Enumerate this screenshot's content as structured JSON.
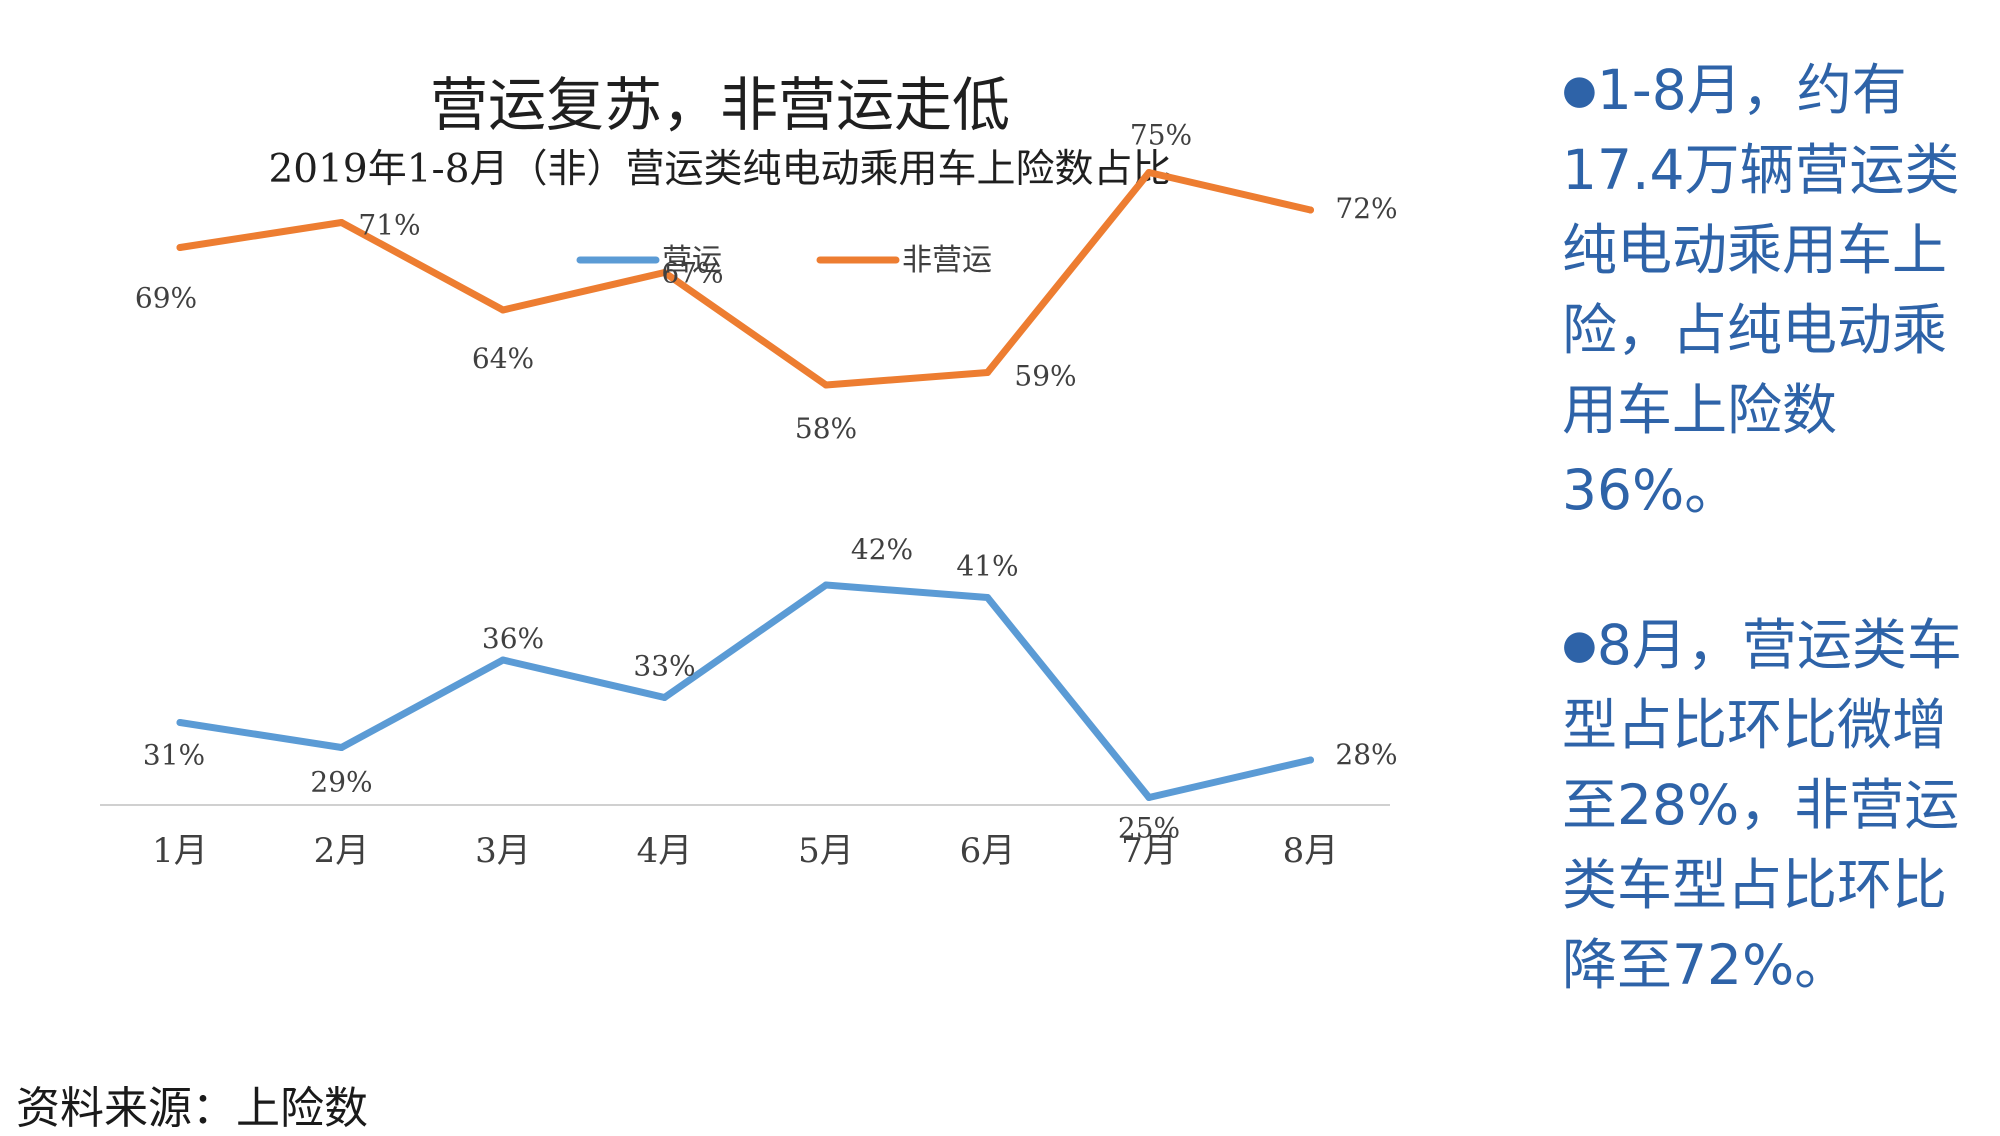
{
  "chart_data": {
    "type": "line",
    "title": "营运复苏，非营运走低",
    "subtitle": "2019年1-8月（非）营运类纯电动乘用车上险数占比",
    "categories": [
      "1月",
      "2月",
      "3月",
      "4月",
      "5月",
      "6月",
      "7月",
      "8月"
    ],
    "series": [
      {
        "name": "营运",
        "color": "#5b9bd5",
        "values": [
          31,
          29,
          36,
          33,
          42,
          41,
          25,
          28
        ],
        "labels": [
          "31%",
          "29%",
          "36%",
          "33%",
          "42%",
          "41%",
          "25%",
          "28%"
        ]
      },
      {
        "name": "非营运",
        "color": "#ed7d31",
        "values": [
          69,
          71,
          64,
          67,
          58,
          59,
          75,
          72
        ],
        "labels": [
          "69%",
          "71%",
          "64%",
          "67%",
          "58%",
          "59%",
          "75%",
          "72%"
        ]
      }
    ],
    "ylim": [
      0,
      100
    ],
    "legend_position": "top-center",
    "grid": false
  },
  "side_panel": {
    "bullet": "●",
    "point1": "1-8月，约有17.4万辆营运类纯电动乘用车上险，占纯电动乘用车上险数36%。",
    "point2": "8月，营运类车型占比环比微增至28%，非营运类车型占比环比降至72%。"
  },
  "source": "资料来源：上险数"
}
